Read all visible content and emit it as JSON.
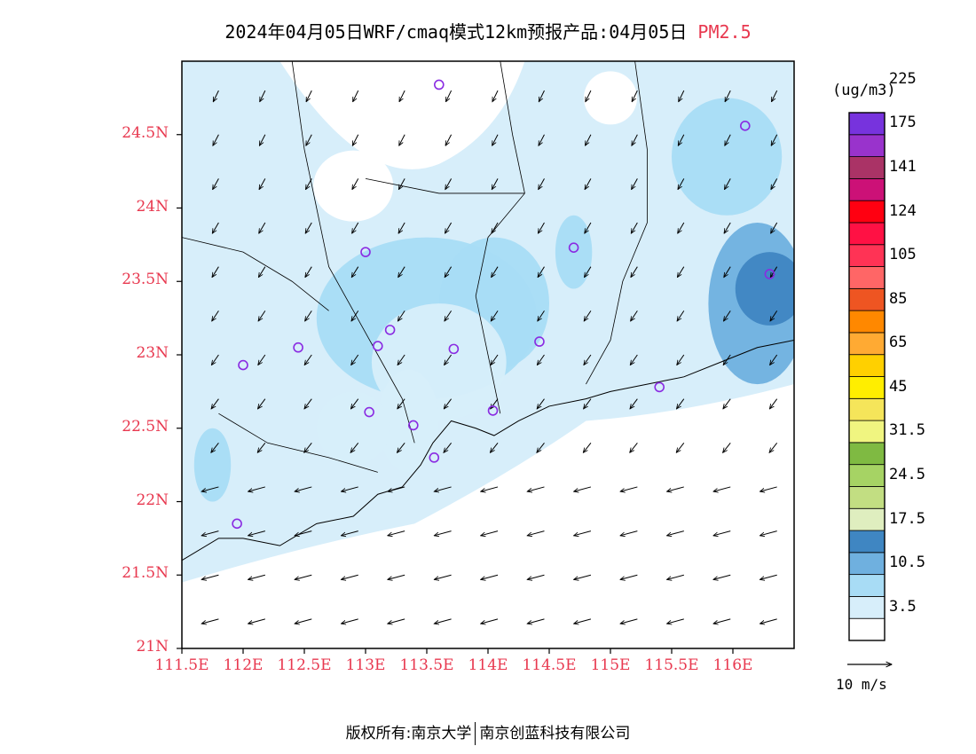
{
  "title": {
    "main": "2024年04月05日WRF/cmaq模式12km预报产品:04月05日",
    "variable": "PM2.5"
  },
  "map": {
    "lon_range": [
      111.5,
      116.5
    ],
    "lat_range": [
      21.0,
      25.0
    ],
    "y_ticks": [
      {
        "lat": 24.5,
        "label": "24.5N"
      },
      {
        "lat": 24.0,
        "label": "24N"
      },
      {
        "lat": 23.5,
        "label": "23.5N"
      },
      {
        "lat": 23.0,
        "label": "23N"
      },
      {
        "lat": 22.5,
        "label": "22.5N"
      },
      {
        "lat": 22.0,
        "label": "22N"
      },
      {
        "lat": 21.5,
        "label": "21.5N"
      },
      {
        "lat": 21.0,
        "label": "21N"
      }
    ],
    "x_ticks": [
      {
        "lon": 111.5,
        "label": "111.5E"
      },
      {
        "lon": 112.0,
        "label": "112E"
      },
      {
        "lon": 112.5,
        "label": "112.5E"
      },
      {
        "lon": 113.0,
        "label": "113E"
      },
      {
        "lon": 113.5,
        "label": "113.5E"
      },
      {
        "lon": 114.0,
        "label": "114E"
      },
      {
        "lon": 114.5,
        "label": "114.5E"
      },
      {
        "lon": 115.0,
        "label": "115E"
      },
      {
        "lon": 115.5,
        "label": "115.5E"
      },
      {
        "lon": 116.0,
        "label": "116E"
      }
    ],
    "stations": [
      {
        "lon": 113.6,
        "lat": 24.84
      },
      {
        "lon": 116.1,
        "lat": 24.56
      },
      {
        "lon": 113.0,
        "lat": 23.7
      },
      {
        "lon": 114.7,
        "lat": 23.73
      },
      {
        "lon": 116.3,
        "lat": 23.55
      },
      {
        "lon": 113.2,
        "lat": 23.17
      },
      {
        "lon": 113.1,
        "lat": 23.06
      },
      {
        "lon": 112.45,
        "lat": 23.05
      },
      {
        "lon": 113.72,
        "lat": 23.04
      },
      {
        "lon": 114.42,
        "lat": 23.09
      },
      {
        "lon": 112.0,
        "lat": 22.93
      },
      {
        "lon": 115.4,
        "lat": 22.78
      },
      {
        "lon": 113.03,
        "lat": 22.61
      },
      {
        "lon": 114.04,
        "lat": 22.62
      },
      {
        "lon": 113.39,
        "lat": 22.52
      },
      {
        "lon": 113.56,
        "lat": 22.3
      },
      {
        "lon": 111.95,
        "lat": 21.85
      }
    ],
    "pm25_patches": [
      {
        "lon": 113.5,
        "lat": 23.25,
        "rx": 0.9,
        "ry": 0.55,
        "level": 2
      },
      {
        "lon": 114.05,
        "lat": 23.35,
        "rx": 0.45,
        "ry": 0.45,
        "level": 2
      },
      {
        "lon": 113.6,
        "lat": 22.95,
        "rx": 0.55,
        "ry": 0.4,
        "level": 1
      },
      {
        "lon": 115.95,
        "lat": 24.35,
        "rx": 0.45,
        "ry": 0.4,
        "level": 2
      },
      {
        "lon": 116.2,
        "lat": 23.35,
        "rx": 0.4,
        "ry": 0.55,
        "level": 3
      },
      {
        "lon": 116.3,
        "lat": 23.45,
        "rx": 0.28,
        "ry": 0.25,
        "level": 4
      },
      {
        "lon": 111.75,
        "lat": 22.25,
        "rx": 0.15,
        "ry": 0.25,
        "level": 2
      },
      {
        "lon": 114.7,
        "lat": 23.7,
        "rx": 0.15,
        "ry": 0.25,
        "level": 2
      },
      {
        "lon": 113.35,
        "lat": 22.55,
        "rx": 0.25,
        "ry": 0.35,
        "level": 1
      },
      {
        "lon": 112.9,
        "lat": 22.5,
        "rx": 0.3,
        "ry": 0.25,
        "level": 1
      }
    ]
  },
  "colorbar": {
    "unit": "(ug/m3)",
    "colors": [
      "#ffffff",
      "#d7eefa",
      "#a8dcf5",
      "#6fb0df",
      "#3f86c2",
      "#dfeebf",
      "#c2de82",
      "#a6d364",
      "#7fba42",
      "#f0f580",
      "#f5e55a",
      "#ffee00",
      "#ffd000",
      "#ffaa33",
      "#ff8800",
      "#ee5522",
      "#ff6666",
      "#ff3355",
      "#ff1144",
      "#ff0011",
      "#cc1177",
      "#aa3366",
      "#9933cc",
      "#7733dd"
    ],
    "labels": [
      "3.5",
      "10.5",
      "17.5",
      "24.5",
      "31.5",
      "45",
      "65",
      "85",
      "105",
      "124",
      "141",
      "175",
      "225"
    ]
  },
  "wind_legend": {
    "label": "10 m/s"
  },
  "footer": {
    "left": "版权所有:南京大学",
    "right": "南京创蓝科技有限公司"
  }
}
